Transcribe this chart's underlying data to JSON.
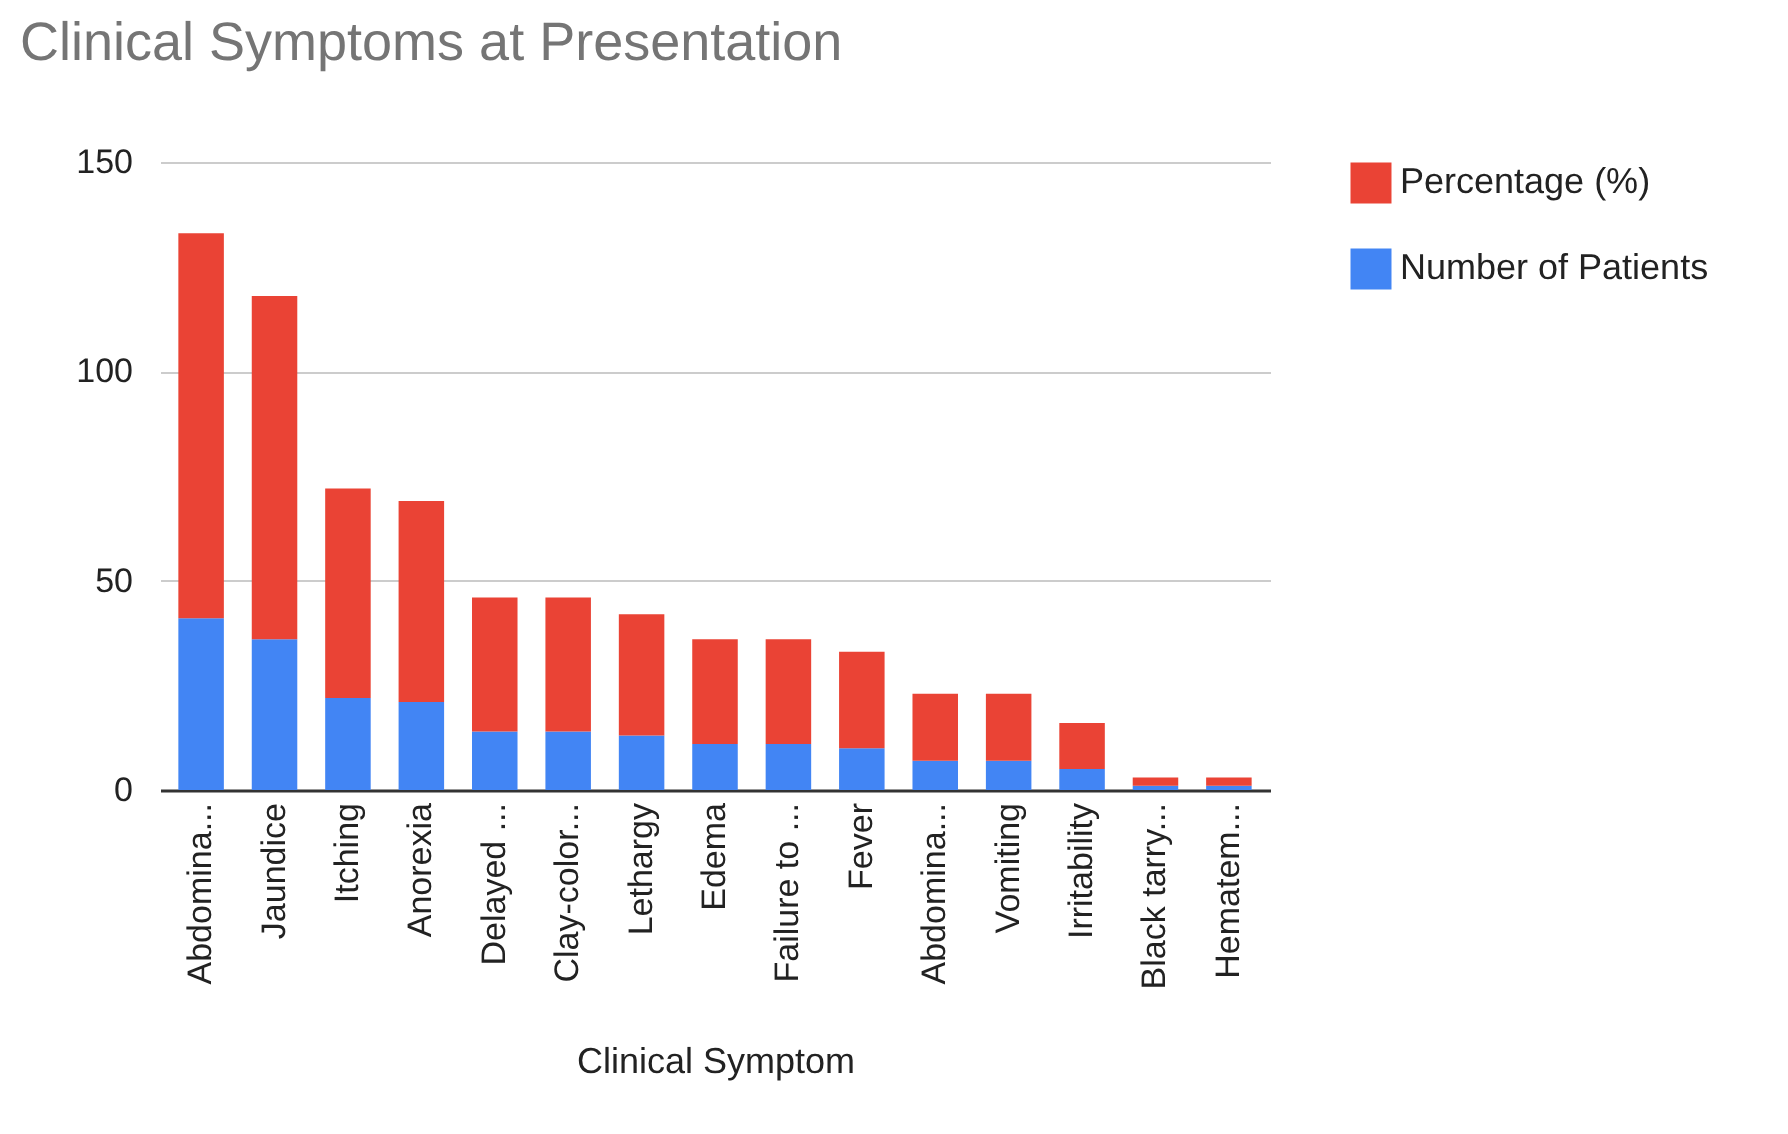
{
  "chart_data": {
    "type": "bar",
    "title": "Clinical Symptoms at Presentation",
    "xlabel": "Clinical Symptom",
    "categories": [
      "Abdomina...",
      "Jaundice",
      "Itching",
      "Anorexia",
      "Delayed ...",
      "Clay-color...",
      "Lethargy",
      "Edema",
      "Failure to ...",
      "Fever",
      "Abdomina...",
      "Vomiting",
      "Irritability",
      "Black tarry...",
      "Hematem..."
    ],
    "series": [
      {
        "name": "Number of Patients",
        "color": "#4285f4",
        "values": [
          41,
          36,
          22,
          21,
          14,
          14,
          13,
          11,
          11,
          10,
          7,
          7,
          5,
          1,
          1
        ]
      },
      {
        "name": "Percentage (%)",
        "color": "#ea4335",
        "values": [
          92,
          82,
          50,
          48,
          32,
          32,
          29,
          25,
          25,
          23,
          16,
          16,
          11,
          2,
          2
        ]
      }
    ],
    "stacked": true,
    "ylim": [
      0,
      150
    ],
    "yticks": [
      0,
      50,
      100,
      150
    ],
    "grid": "y",
    "legend": "top right"
  }
}
